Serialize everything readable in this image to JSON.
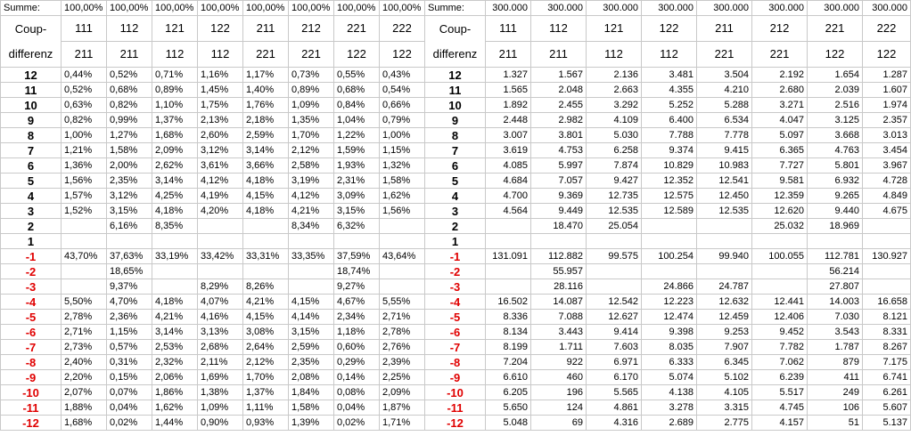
{
  "labels": {
    "summe": "Summe:",
    "coup_line1": "Coup-",
    "coup_line2": "differenz"
  },
  "pct_sums": [
    "100,00%",
    "100,00%",
    "100,00%",
    "100,00%",
    "100,00%",
    "100,00%",
    "100,00%",
    "100,00%"
  ],
  "num_sums": [
    "300.000",
    "300.000",
    "300.000",
    "300.000",
    "300.000",
    "300.000",
    "300.000",
    "300.000"
  ],
  "headers_top": [
    "111",
    "112",
    "121",
    "122",
    "211",
    "212",
    "221",
    "222"
  ],
  "headers_bottom": [
    "211",
    "211",
    "112",
    "112",
    "221",
    "221",
    "122",
    "122"
  ],
  "rows": [
    {
      "diff": "12",
      "neg": false,
      "pct": [
        "0,44%",
        "0,52%",
        "0,71%",
        "1,16%",
        "1,17%",
        "0,73%",
        "0,55%",
        "0,43%"
      ],
      "num": [
        "1.327",
        "1.567",
        "2.136",
        "3.481",
        "3.504",
        "2.192",
        "1.654",
        "1.287"
      ]
    },
    {
      "diff": "11",
      "neg": false,
      "pct": [
        "0,52%",
        "0,68%",
        "0,89%",
        "1,45%",
        "1,40%",
        "0,89%",
        "0,68%",
        "0,54%"
      ],
      "num": [
        "1.565",
        "2.048",
        "2.663",
        "4.355",
        "4.210",
        "2.680",
        "2.039",
        "1.607"
      ]
    },
    {
      "diff": "10",
      "neg": false,
      "pct": [
        "0,63%",
        "0,82%",
        "1,10%",
        "1,75%",
        "1,76%",
        "1,09%",
        "0,84%",
        "0,66%"
      ],
      "num": [
        "1.892",
        "2.455",
        "3.292",
        "5.252",
        "5.288",
        "3.271",
        "2.516",
        "1.974"
      ]
    },
    {
      "diff": "9",
      "neg": false,
      "pct": [
        "0,82%",
        "0,99%",
        "1,37%",
        "2,13%",
        "2,18%",
        "1,35%",
        "1,04%",
        "0,79%"
      ],
      "num": [
        "2.448",
        "2.982",
        "4.109",
        "6.400",
        "6.534",
        "4.047",
        "3.125",
        "2.357"
      ]
    },
    {
      "diff": "8",
      "neg": false,
      "pct": [
        "1,00%",
        "1,27%",
        "1,68%",
        "2,60%",
        "2,59%",
        "1,70%",
        "1,22%",
        "1,00%"
      ],
      "num": [
        "3.007",
        "3.801",
        "5.030",
        "7.788",
        "7.778",
        "5.097",
        "3.668",
        "3.013"
      ]
    },
    {
      "diff": "7",
      "neg": false,
      "pct": [
        "1,21%",
        "1,58%",
        "2,09%",
        "3,12%",
        "3,14%",
        "2,12%",
        "1,59%",
        "1,15%"
      ],
      "num": [
        "3.619",
        "4.753",
        "6.258",
        "9.374",
        "9.415",
        "6.365",
        "4.763",
        "3.454"
      ]
    },
    {
      "diff": "6",
      "neg": false,
      "pct": [
        "1,36%",
        "2,00%",
        "2,62%",
        "3,61%",
        "3,66%",
        "2,58%",
        "1,93%",
        "1,32%"
      ],
      "num": [
        "4.085",
        "5.997",
        "7.874",
        "10.829",
        "10.983",
        "7.727",
        "5.801",
        "3.967"
      ]
    },
    {
      "diff": "5",
      "neg": false,
      "pct": [
        "1,56%",
        "2,35%",
        "3,14%",
        "4,12%",
        "4,18%",
        "3,19%",
        "2,31%",
        "1,58%"
      ],
      "num": [
        "4.684",
        "7.057",
        "9.427",
        "12.352",
        "12.541",
        "9.581",
        "6.932",
        "4.728"
      ]
    },
    {
      "diff": "4",
      "neg": false,
      "pct": [
        "1,57%",
        "3,12%",
        "4,25%",
        "4,19%",
        "4,15%",
        "4,12%",
        "3,09%",
        "1,62%"
      ],
      "num": [
        "4.700",
        "9.369",
        "12.735",
        "12.575",
        "12.450",
        "12.359",
        "9.265",
        "4.849"
      ]
    },
    {
      "diff": "3",
      "neg": false,
      "pct": [
        "1,52%",
        "3,15%",
        "4,18%",
        "4,20%",
        "4,18%",
        "4,21%",
        "3,15%",
        "1,56%"
      ],
      "num": [
        "4.564",
        "9.449",
        "12.535",
        "12.589",
        "12.535",
        "12.620",
        "9.440",
        "4.675"
      ]
    },
    {
      "diff": "2",
      "neg": false,
      "pct": [
        "",
        "6,16%",
        "8,35%",
        "",
        "",
        "8,34%",
        "6,32%",
        ""
      ],
      "num": [
        "",
        "18.470",
        "25.054",
        "",
        "",
        "25.032",
        "18.969",
        ""
      ]
    },
    {
      "diff": "1",
      "neg": false,
      "pct": [
        "",
        "",
        "",
        "",
        "",
        "",
        "",
        ""
      ],
      "num": [
        "",
        "",
        "",
        "",
        "",
        "",
        "",
        ""
      ]
    },
    {
      "diff": "-1",
      "neg": true,
      "pct": [
        "43,70%",
        "37,63%",
        "33,19%",
        "33,42%",
        "33,31%",
        "33,35%",
        "37,59%",
        "43,64%"
      ],
      "num": [
        "131.091",
        "112.882",
        "99.575",
        "100.254",
        "99.940",
        "100.055",
        "112.781",
        "130.927"
      ]
    },
    {
      "diff": "-2",
      "neg": true,
      "pct": [
        "",
        "18,65%",
        "",
        "",
        "",
        "",
        "18,74%",
        ""
      ],
      "num": [
        "",
        "55.957",
        "",
        "",
        "",
        "",
        "56.214",
        ""
      ]
    },
    {
      "diff": "-3",
      "neg": true,
      "pct": [
        "",
        "9,37%",
        "",
        "8,29%",
        "8,26%",
        "",
        "9,27%",
        ""
      ],
      "num": [
        "",
        "28.116",
        "",
        "24.866",
        "24.787",
        "",
        "27.807",
        ""
      ]
    },
    {
      "diff": "-4",
      "neg": true,
      "pct": [
        "5,50%",
        "4,70%",
        "4,18%",
        "4,07%",
        "4,21%",
        "4,15%",
        "4,67%",
        "5,55%"
      ],
      "num": [
        "16.502",
        "14.087",
        "12.542",
        "12.223",
        "12.632",
        "12.441",
        "14.003",
        "16.658"
      ]
    },
    {
      "diff": "-5",
      "neg": true,
      "pct": [
        "2,78%",
        "2,36%",
        "4,21%",
        "4,16%",
        "4,15%",
        "4,14%",
        "2,34%",
        "2,71%"
      ],
      "num": [
        "8.336",
        "7.088",
        "12.627",
        "12.474",
        "12.459",
        "12.406",
        "7.030",
        "8.121"
      ]
    },
    {
      "diff": "-6",
      "neg": true,
      "pct": [
        "2,71%",
        "1,15%",
        "3,14%",
        "3,13%",
        "3,08%",
        "3,15%",
        "1,18%",
        "2,78%"
      ],
      "num": [
        "8.134",
        "3.443",
        "9.414",
        "9.398",
        "9.253",
        "9.452",
        "3.543",
        "8.331"
      ]
    },
    {
      "diff": "-7",
      "neg": true,
      "pct": [
        "2,73%",
        "0,57%",
        "2,53%",
        "2,68%",
        "2,64%",
        "2,59%",
        "0,60%",
        "2,76%"
      ],
      "num": [
        "8.199",
        "1.711",
        "7.603",
        "8.035",
        "7.907",
        "7.782",
        "1.787",
        "8.267"
      ]
    },
    {
      "diff": "-8",
      "neg": true,
      "pct": [
        "2,40%",
        "0,31%",
        "2,32%",
        "2,11%",
        "2,12%",
        "2,35%",
        "0,29%",
        "2,39%"
      ],
      "num": [
        "7.204",
        "922",
        "6.971",
        "6.333",
        "6.345",
        "7.062",
        "879",
        "7.175"
      ]
    },
    {
      "diff": "-9",
      "neg": true,
      "pct": [
        "2,20%",
        "0,15%",
        "2,06%",
        "1,69%",
        "1,70%",
        "2,08%",
        "0,14%",
        "2,25%"
      ],
      "num": [
        "6.610",
        "460",
        "6.170",
        "5.074",
        "5.102",
        "6.239",
        "411",
        "6.741"
      ]
    },
    {
      "diff": "-10",
      "neg": true,
      "pct": [
        "2,07%",
        "0,07%",
        "1,86%",
        "1,38%",
        "1,37%",
        "1,84%",
        "0,08%",
        "2,09%"
      ],
      "num": [
        "6.205",
        "196",
        "5.565",
        "4.138",
        "4.105",
        "5.517",
        "249",
        "6.261"
      ]
    },
    {
      "diff": "-11",
      "neg": true,
      "pct": [
        "1,88%",
        "0,04%",
        "1,62%",
        "1,09%",
        "1,11%",
        "1,58%",
        "0,04%",
        "1,87%"
      ],
      "num": [
        "5.650",
        "124",
        "4.861",
        "3.278",
        "3.315",
        "4.745",
        "106",
        "5.607"
      ]
    },
    {
      "diff": "-12",
      "neg": true,
      "pct": [
        "1,68%",
        "0,02%",
        "1,44%",
        "0,90%",
        "0,93%",
        "1,39%",
        "0,02%",
        "1,71%"
      ],
      "num": [
        "5.048",
        "69",
        "4.316",
        "2.689",
        "2.775",
        "4.157",
        "51",
        "5.137"
      ]
    }
  ],
  "colors": {
    "negative": "#e00000",
    "grid": "#c9c9c9"
  }
}
